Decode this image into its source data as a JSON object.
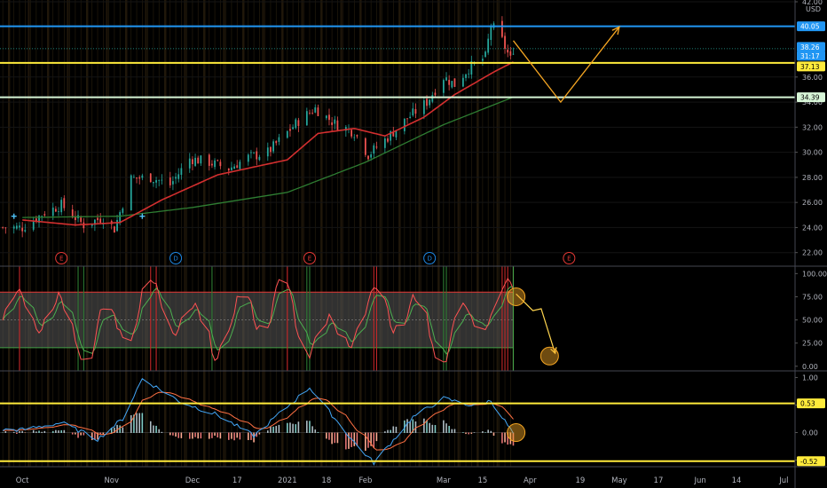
{
  "chart_data": {
    "type": "candlestick",
    "currency": "USD",
    "colors": {
      "background": "#000000",
      "up": "#26a69a",
      "down": "#ef5350",
      "ema_fast": "#d32f2f",
      "ema_slow": "#2e7d32",
      "level_top": "#2196f3",
      "level_mid": "#ffeb3b",
      "level_low": "#d7f5d7",
      "projection": "#f5a623",
      "stoch_k": "#ff5252",
      "stoch_d": "#4caf50",
      "macd": "#42a5f5",
      "signal": "#ff7043",
      "axis_text": "#b2b5be"
    },
    "x_axis": {
      "ticks": [
        {
          "label": "Oct",
          "date": "2020-10-01"
        },
        {
          "label": "Nov",
          "date": "2020-11-02"
        },
        {
          "label": "Dec",
          "date": "2020-12-01"
        },
        {
          "label": "17",
          "date": "2020-12-17"
        },
        {
          "label": "2021",
          "date": "2021-01-04"
        },
        {
          "label": "18",
          "date": "2021-01-18"
        },
        {
          "label": "Feb",
          "date": "2021-02-01"
        },
        {
          "label": "Mar",
          "date": "2021-03-01"
        },
        {
          "label": "15",
          "date": "2021-03-15"
        },
        {
          "label": "Apr",
          "date": "2021-04-01"
        },
        {
          "label": "19",
          "date": "2021-04-19"
        },
        {
          "label": "May",
          "date": "2021-05-03"
        },
        {
          "label": "17",
          "date": "2021-05-17"
        },
        {
          "label": "Jun",
          "date": "2021-06-01"
        },
        {
          "label": "14",
          "date": "2021-06-14"
        },
        {
          "label": "Jul",
          "date": "2021-07-01"
        }
      ]
    },
    "price_panel": {
      "ylim": [
        21.2,
        42.0
      ],
      "y_ticks": [
        "42.00",
        "36.00",
        "34.00",
        "32.00",
        "30.00",
        "28.00",
        "26.00",
        "24.00",
        "22.00"
      ],
      "unit_label": "USD",
      "levels": [
        {
          "value": 40.05,
          "label": "40.05",
          "role": "top"
        },
        {
          "value": 37.13,
          "label": "37.13",
          "role": "mid"
        },
        {
          "value": 34.39,
          "label": "34.39",
          "role": "low"
        }
      ],
      "last_price_label": "38.26",
      "countdown_label": "31:17",
      "last_price": 38.26,
      "events": [
        {
          "label": "E",
          "date": "2020-10-15",
          "kind": "earnings"
        },
        {
          "label": "D",
          "date": "2020-11-25",
          "kind": "dividend"
        },
        {
          "label": "E",
          "date": "2021-01-12",
          "kind": "earnings"
        },
        {
          "label": "D",
          "date": "2021-02-24",
          "kind": "dividend"
        },
        {
          "label": "E",
          "date": "2021-04-15",
          "kind": "earnings"
        }
      ],
      "projection_path": [
        {
          "date": "2021-03-26",
          "price": 38.9
        },
        {
          "date": "2021-04-12",
          "price": 34.0
        },
        {
          "date": "2021-05-03",
          "price": 40.0
        }
      ],
      "close_anchors": [
        {
          "date": "2020-10-01",
          "price": 24.0
        },
        {
          "date": "2020-10-09",
          "price": 25.2
        },
        {
          "date": "2020-10-15",
          "price": 25.8
        },
        {
          "date": "2020-10-23",
          "price": 24.2
        },
        {
          "date": "2020-10-30",
          "price": 24.8
        },
        {
          "date": "2020-11-03",
          "price": 23.9
        },
        {
          "date": "2020-11-09",
          "price": 27.9
        },
        {
          "date": "2020-11-16",
          "price": 28.0
        },
        {
          "date": "2020-11-23",
          "price": 27.4
        },
        {
          "date": "2020-11-30",
          "price": 29.5
        },
        {
          "date": "2020-12-07",
          "price": 29.2
        },
        {
          "date": "2020-12-14",
          "price": 28.7
        },
        {
          "date": "2020-12-21",
          "price": 29.6
        },
        {
          "date": "2020-12-28",
          "price": 30.0
        },
        {
          "date": "2021-01-08",
          "price": 32.5
        },
        {
          "date": "2021-01-14",
          "price": 33.5
        },
        {
          "date": "2021-01-21",
          "price": 32.3
        },
        {
          "date": "2021-01-28",
          "price": 31.6
        },
        {
          "date": "2021-02-02",
          "price": 29.8
        },
        {
          "date": "2021-02-09",
          "price": 31.2
        },
        {
          "date": "2021-02-16",
          "price": 32.7
        },
        {
          "date": "2021-02-23",
          "price": 34.0
        },
        {
          "date": "2021-03-01",
          "price": 36.0
        },
        {
          "date": "2021-03-05",
          "price": 35.4
        },
        {
          "date": "2021-03-10",
          "price": 36.7
        },
        {
          "date": "2021-03-16",
          "price": 37.6
        },
        {
          "date": "2021-03-18",
          "price": 40.2
        },
        {
          "date": "2021-03-22",
          "price": 38.9
        },
        {
          "date": "2021-03-25",
          "price": 37.4
        },
        {
          "date": "2021-03-26",
          "price": 38.26
        }
      ],
      "ema_fast_anchors": [
        {
          "date": "2020-10-01",
          "price": 24.6
        },
        {
          "date": "2020-10-20",
          "price": 24.2
        },
        {
          "date": "2020-11-05",
          "price": 24.4
        },
        {
          "date": "2020-11-20",
          "price": 26.2
        },
        {
          "date": "2020-12-10",
          "price": 28.2
        },
        {
          "date": "2021-01-04",
          "price": 29.4
        },
        {
          "date": "2021-01-15",
          "price": 31.5
        },
        {
          "date": "2021-01-28",
          "price": 31.9
        },
        {
          "date": "2021-02-08",
          "price": 31.3
        },
        {
          "date": "2021-02-22",
          "price": 32.8
        },
        {
          "date": "2021-03-05",
          "price": 34.6
        },
        {
          "date": "2021-03-19",
          "price": 36.4
        },
        {
          "date": "2021-03-26",
          "price": 37.2
        }
      ],
      "ema_slow_anchors": [
        {
          "date": "2020-10-01",
          "price": 24.8
        },
        {
          "date": "2020-11-05",
          "price": 24.9
        },
        {
          "date": "2020-12-01",
          "price": 25.6
        },
        {
          "date": "2021-01-04",
          "price": 26.8
        },
        {
          "date": "2021-02-01",
          "price": 29.2
        },
        {
          "date": "2021-03-01",
          "price": 32.2
        },
        {
          "date": "2021-03-26",
          "price": 34.4
        }
      ]
    },
    "stoch_panel": {
      "ylim": [
        -5,
        108
      ],
      "y_ticks": [
        "100.00",
        "75.00",
        "50.00",
        "25.00",
        "0.00"
      ],
      "band": [
        20,
        80
      ],
      "projection_path": [
        {
          "date": "2021-03-27",
          "value": 78
        },
        {
          "date": "2021-04-02",
          "value": 60
        },
        {
          "date": "2021-04-05",
          "value": 62
        },
        {
          "date": "2021-04-10",
          "value": 14
        }
      ],
      "markers": [
        {
          "date": "2021-03-27",
          "value": 75
        },
        {
          "date": "2021-04-08",
          "value": 11
        }
      ]
    },
    "macd_panel": {
      "ylim": [
        -0.62,
        1.12
      ],
      "y_ticks": [
        "1.00",
        "0.50",
        "0.00",
        "-0.50"
      ],
      "levels": [
        {
          "value": 0.53,
          "label": "0.53"
        },
        {
          "value": -0.52,
          "label": "-0.52"
        }
      ],
      "macd_anchors": [
        {
          "date": "2020-10-01",
          "value": 0.05
        },
        {
          "date": "2020-10-15",
          "value": 0.18
        },
        {
          "date": "2020-10-28",
          "value": -0.12
        },
        {
          "date": "2020-11-06",
          "value": 0.25
        },
        {
          "date": "2020-11-13",
          "value": 0.98
        },
        {
          "date": "2020-11-27",
          "value": 0.55
        },
        {
          "date": "2020-12-10",
          "value": 0.32
        },
        {
          "date": "2020-12-23",
          "value": -0.06
        },
        {
          "date": "2021-01-12",
          "value": 0.82
        },
        {
          "date": "2021-01-28",
          "value": -0.18
        },
        {
          "date": "2021-02-04",
          "value": -0.55
        },
        {
          "date": "2021-02-18",
          "value": 0.28
        },
        {
          "date": "2021-03-01",
          "value": 0.62
        },
        {
          "date": "2021-03-12",
          "value": 0.48
        },
        {
          "date": "2021-03-18",
          "value": 0.58
        },
        {
          "date": "2021-03-26",
          "value": -0.02
        }
      ],
      "markers": [
        {
          "date": "2021-03-27",
          "value": 0.0
        }
      ]
    }
  }
}
